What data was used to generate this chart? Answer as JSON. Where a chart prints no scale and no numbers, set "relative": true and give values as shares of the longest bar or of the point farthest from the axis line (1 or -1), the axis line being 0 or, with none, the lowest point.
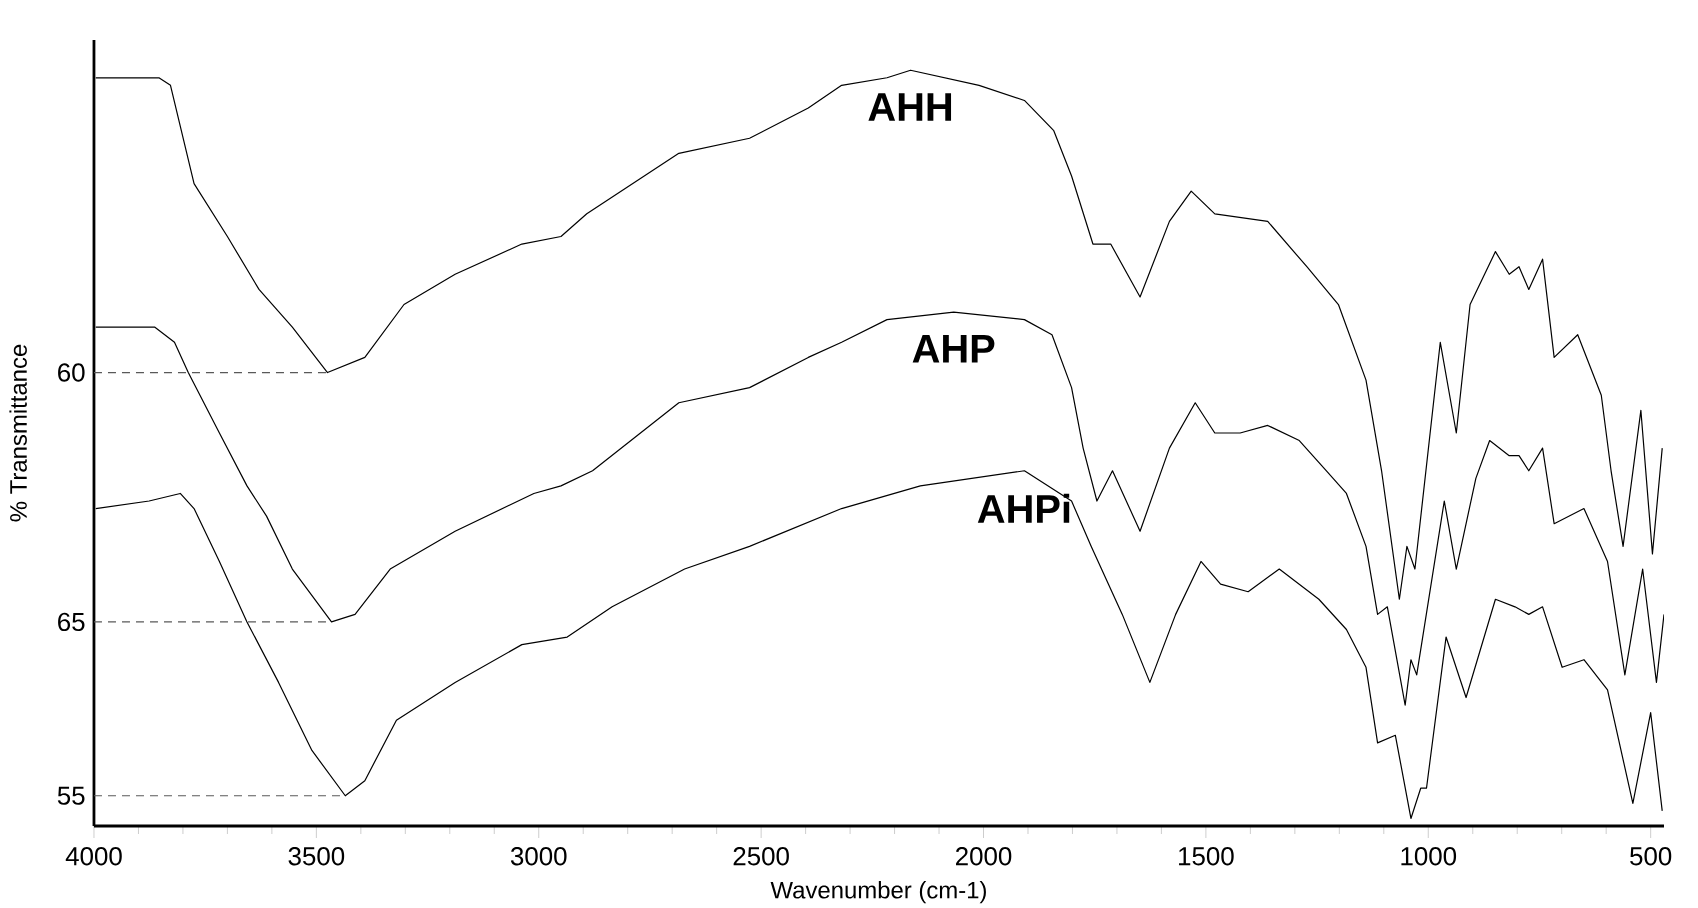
{
  "chart_data": {
    "type": "line",
    "relative": true,
    "xlabel": "Wavenumber (cm-1)",
    "ylabel": "% Transmittance",
    "xlim": [
      4000,
      470
    ],
    "xticks": [
      4000,
      3500,
      3000,
      2500,
      2000,
      1500,
      1000,
      500
    ],
    "grid": false,
    "marker": "none",
    "annotations": [
      {
        "text": "60",
        "x": 3475,
        "y": 0.6
      },
      {
        "text": "65",
        "x": 3466,
        "y": 0.27
      },
      {
        "text": "55",
        "x": 3435,
        "y": 0.04
      }
    ],
    "series": [
      {
        "name": "AHH",
        "color": "#000000",
        "x": [
          3996,
          3854,
          3828,
          3775,
          3700,
          3629,
          3554,
          3475,
          3391,
          3303,
          3188,
          3038,
          2950,
          2892,
          2685,
          2526,
          2394,
          2319,
          2217,
          2164,
          2010,
          1908,
          1842,
          1802,
          1754,
          1714,
          1648,
          1582,
          1533,
          1480,
          1361,
          1273,
          1202,
          1140,
          1105,
          1065,
          1048,
          1030,
          973,
          937,
          906,
          849,
          818,
          796,
          774,
          743,
          717,
          664,
          611,
          589,
          562,
          522,
          496,
          474
        ],
        "values": [
          0.99,
          0.99,
          0.98,
          0.85,
          0.78,
          0.71,
          0.66,
          0.6,
          0.62,
          0.69,
          0.73,
          0.77,
          0.78,
          0.81,
          0.89,
          0.91,
          0.95,
          0.98,
          0.99,
          1.0,
          0.98,
          0.96,
          0.92,
          0.86,
          0.77,
          0.77,
          0.7,
          0.8,
          0.84,
          0.81,
          0.8,
          0.74,
          0.69,
          0.59,
          0.47,
          0.3,
          0.37,
          0.34,
          0.64,
          0.52,
          0.69,
          0.76,
          0.73,
          0.74,
          0.71,
          0.75,
          0.62,
          0.65,
          0.57,
          0.47,
          0.37,
          0.55,
          0.36,
          0.5
        ]
      },
      {
        "name": "AHP",
        "color": "#000000",
        "x": [
          3996,
          3863,
          3819,
          3788,
          3718,
          3656,
          3612,
          3554,
          3466,
          3413,
          3334,
          3188,
          3011,
          2950,
          2879,
          2685,
          2526,
          2394,
          2319,
          2217,
          2067,
          1908,
          1846,
          1802,
          1776,
          1745,
          1710,
          1648,
          1582,
          1524,
          1480,
          1423,
          1361,
          1290,
          1229,
          1184,
          1140,
          1114,
          1092,
          1052,
          1039,
          1026,
          964,
          937,
          893,
          862,
          818,
          796,
          774,
          743,
          717,
          650,
          597,
          558,
          518,
          487,
          470
        ],
        "values": [
          0.66,
          0.66,
          0.64,
          0.6,
          0.52,
          0.45,
          0.41,
          0.34,
          0.27,
          0.28,
          0.34,
          0.39,
          0.44,
          0.45,
          0.47,
          0.56,
          0.58,
          0.62,
          0.64,
          0.67,
          0.68,
          0.67,
          0.65,
          0.58,
          0.5,
          0.43,
          0.47,
          0.39,
          0.5,
          0.56,
          0.52,
          0.52,
          0.53,
          0.51,
          0.47,
          0.44,
          0.37,
          0.28,
          0.29,
          0.16,
          0.22,
          0.2,
          0.43,
          0.34,
          0.46,
          0.51,
          0.49,
          0.49,
          0.47,
          0.5,
          0.4,
          0.42,
          0.35,
          0.2,
          0.34,
          0.19,
          0.28
        ]
      },
      {
        "name": "AHPi",
        "color": "#000000",
        "x": [
          3996,
          3876,
          3806,
          3775,
          3718,
          3656,
          3585,
          3510,
          3435,
          3391,
          3320,
          3188,
          3038,
          2936,
          2835,
          2672,
          2526,
          2319,
          2142,
          1908,
          1802,
          1758,
          1688,
          1626,
          1568,
          1511,
          1467,
          1405,
          1335,
          1246,
          1184,
          1140,
          1114,
          1074,
          1039,
          1017,
          1004,
          960,
          915,
          849,
          805,
          774,
          743,
          699,
          650,
          597,
          540,
          500,
          474
        ],
        "values": [
          0.42,
          0.43,
          0.44,
          0.42,
          0.35,
          0.27,
          0.19,
          0.1,
          0.04,
          0.06,
          0.14,
          0.19,
          0.24,
          0.25,
          0.29,
          0.34,
          0.37,
          0.42,
          0.45,
          0.47,
          0.43,
          0.37,
          0.28,
          0.19,
          0.28,
          0.35,
          0.32,
          0.31,
          0.34,
          0.3,
          0.26,
          0.21,
          0.11,
          0.12,
          0.01,
          0.05,
          0.05,
          0.25,
          0.17,
          0.3,
          0.29,
          0.28,
          0.29,
          0.21,
          0.22,
          0.18,
          0.03,
          0.15,
          0.02
        ]
      }
    ]
  }
}
